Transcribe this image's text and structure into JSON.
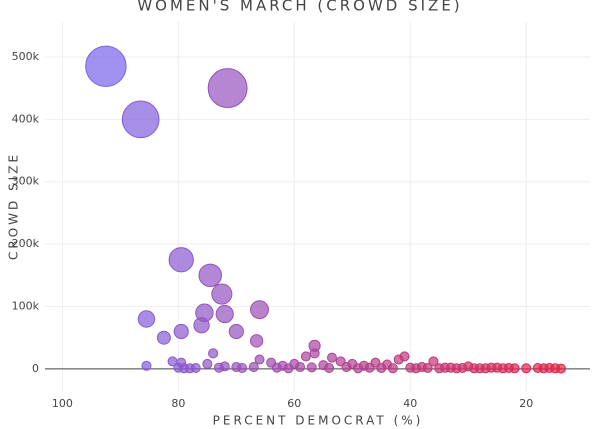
{
  "chart_data": {
    "type": "scatter",
    "title": "WOMEN'S MARCH (CROWD SIZE)",
    "x_label": "PERCENT DEMOCRAT (%)",
    "y_label": "CROWD SIZE",
    "xlim": [
      103,
      9
    ],
    "ylim": [
      -37000,
      556000
    ],
    "xticks": [
      100,
      80,
      60,
      40,
      20
    ],
    "yticks": [
      0,
      {
        "value": 100000,
        "label": "100k"
      },
      {
        "value": 200000,
        "label": "200k"
      },
      {
        "value": 300000,
        "label": "300k"
      },
      {
        "value": 400000,
        "label": "400k"
      },
      {
        "value": 500000,
        "label": "500k"
      }
    ],
    "grid": true,
    "colorscale": [
      "#6b6bff",
      "#e8203a"
    ],
    "x": [
      92.5,
      86.5,
      71.5,
      79.5,
      74.5,
      72.5,
      66,
      85.5,
      75.5,
      72,
      76,
      79.5,
      70,
      82.5,
      74,
      66.5,
      56.5,
      58,
      56.5,
      53.5,
      81,
      79.5,
      85.5,
      80,
      79,
      77,
      75,
      72,
      70,
      66,
      64,
      62,
      60,
      59,
      55,
      52,
      50,
      48,
      46,
      44,
      42,
      41,
      38,
      36,
      34,
      30,
      28,
      25,
      22,
      18,
      15,
      14,
      78,
      73,
      69,
      67,
      63,
      61,
      57,
      54,
      51,
      49,
      47,
      45,
      43,
      40,
      39,
      37,
      35,
      33,
      32,
      31,
      29,
      27,
      26,
      24,
      23,
      20,
      17,
      16
    ],
    "values": [
      485000,
      400000,
      450000,
      175000,
      150000,
      120000,
      95000,
      80000,
      90000,
      88000,
      70000,
      60000,
      60000,
      50000,
      25000,
      45000,
      37000,
      20000,
      25000,
      18000,
      12000,
      10000,
      5000,
      2000,
      1000,
      1500,
      8000,
      4000,
      3000,
      15000,
      10000,
      5000,
      8000,
      3000,
      6000,
      12000,
      8000,
      5000,
      10000,
      7000,
      15000,
      20000,
      3000,
      12000,
      2000,
      4000,
      1000,
      2000,
      1000,
      1500,
      1000,
      500,
      1000,
      2000,
      1500,
      3000,
      2000,
      1000,
      2500,
      1500,
      3000,
      1000,
      2000,
      1500,
      1000,
      2000,
      1000,
      1500,
      1000,
      2000,
      1000,
      1500,
      1000,
      1000,
      2000,
      1000,
      1500,
      1000,
      1000,
      1500
    ]
  }
}
